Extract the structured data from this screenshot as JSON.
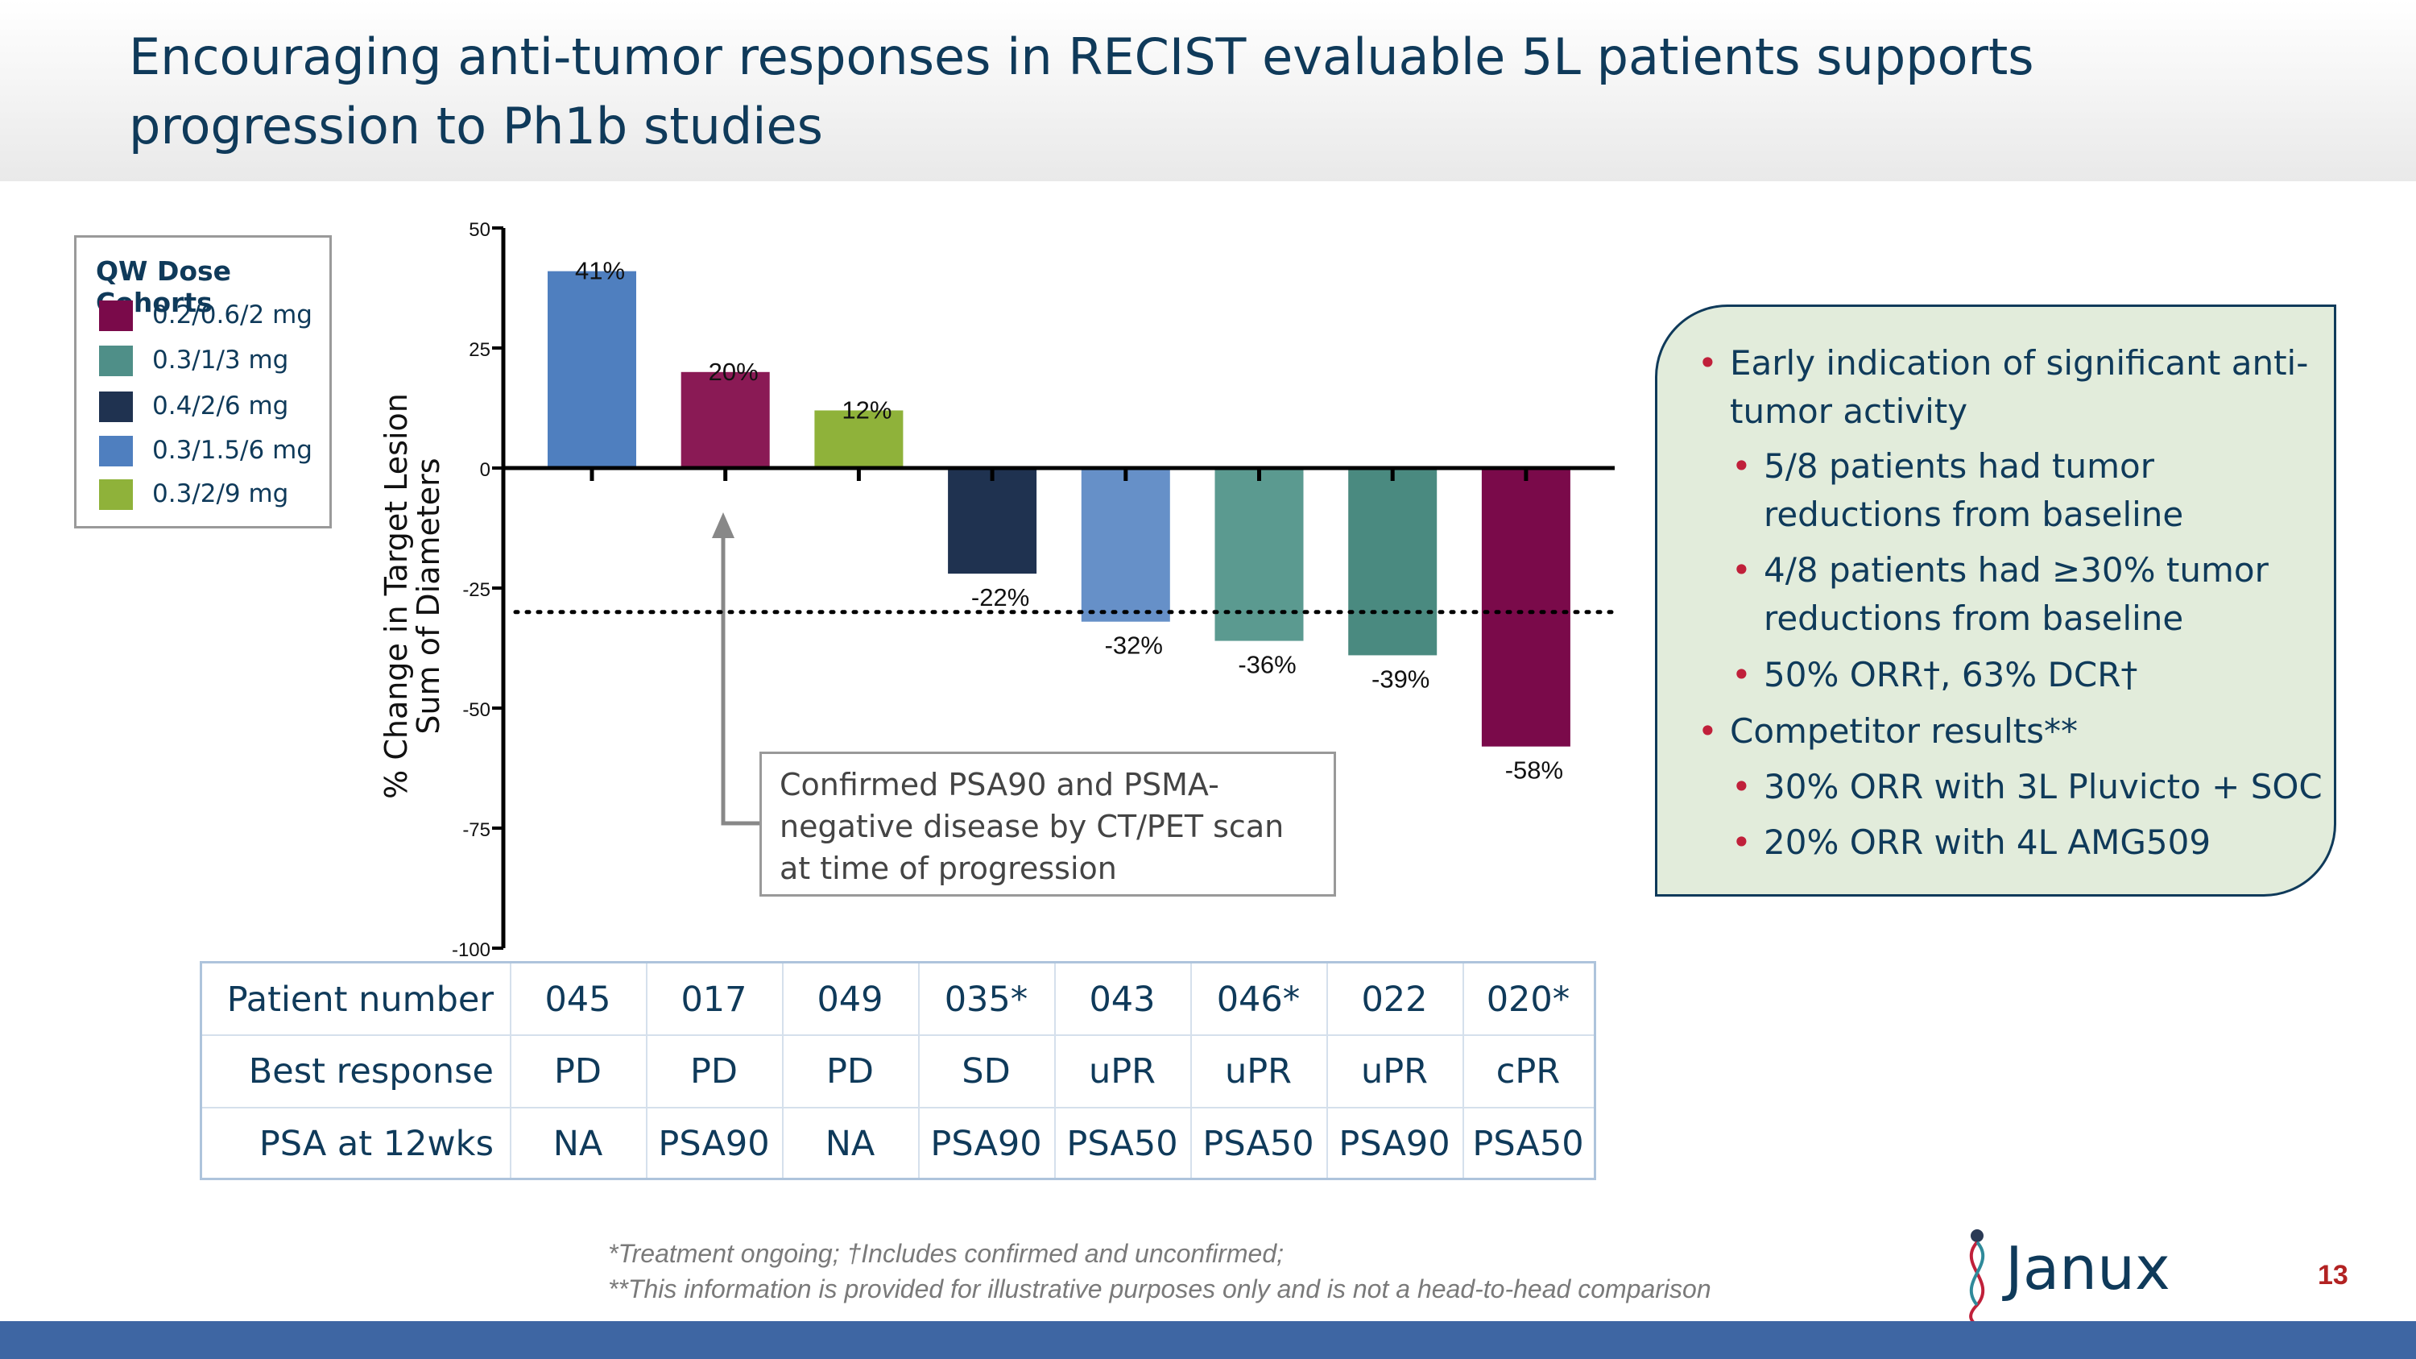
{
  "slide": {
    "title": "Encouraging anti-tumor responses in RECIST evaluable 5L patients supports progression to Ph1b studies",
    "page_number": "13",
    "logo_text": "Janux"
  },
  "legend": {
    "title": "QW Dose Cohorts",
    "items": [
      {
        "label": "0.2/0.6/2 mg",
        "color": "#7a0a4a"
      },
      {
        "label": "0.3/1/3 mg",
        "color": "#4f8f88"
      },
      {
        "label": "0.4/2/6 mg",
        "color": "#1f3250"
      },
      {
        "label": "0.3/1.5/6 mg",
        "color": "#4f7fbf"
      },
      {
        "label": "0.3/2/9 mg",
        "color": "#8fb23a"
      }
    ]
  },
  "chart_data": {
    "type": "bar",
    "title": "",
    "ylabel": "% Change in Target Lesion Sum of Diameters",
    "ylabel_lines": [
      "% Change in Target Lesion",
      "Sum of  Diameters"
    ],
    "xlabel": "",
    "ylim": [
      -100,
      50
    ],
    "yticks": [
      50,
      25,
      0,
      -25,
      -50,
      -75,
      -100
    ],
    "threshold_line": -30,
    "categories": [
      "045",
      "017",
      "049",
      "035*",
      "043",
      "046*",
      "022",
      "020*"
    ],
    "values": [
      41,
      20,
      12,
      -22,
      -32,
      -36,
      -39,
      -58
    ],
    "value_labels": [
      "41%",
      "20%",
      "12%",
      "-22%",
      "-32%",
      "-36%",
      "-39%",
      "-58%"
    ],
    "colors": [
      "#4f7fbf",
      "#8a1a55",
      "#8fb23a",
      "#1f3250",
      "#6690c8",
      "#5b9a90",
      "#4a8a80",
      "#7a0a4a"
    ]
  },
  "callout": {
    "text": "Confirmed PSA90 and PSMA-negative disease by CT/PET scan at time of progression"
  },
  "summary": {
    "bullets": [
      {
        "text": "Early indication of significant anti-tumor activity",
        "level": 0
      },
      {
        "text": "5/8 patients had tumor reductions from baseline",
        "level": 1
      },
      {
        "text": "4/8 patients had ≥30% tumor reductions from baseline",
        "level": 1
      },
      {
        "text": "50% ORR†, 63% DCR†",
        "level": 1
      },
      {
        "text": "Competitor results**",
        "level": 0
      },
      {
        "text": "30% ORR with 3L Pluvicto + SOC",
        "level": 1
      },
      {
        "text": "20% ORR with 4L AMG509",
        "level": 1
      }
    ]
  },
  "table": {
    "rows": [
      {
        "label": "Patient number",
        "cells": [
          "045",
          "017",
          "049",
          "035*",
          "043",
          "046*",
          "022",
          "020*"
        ]
      },
      {
        "label": "Best response",
        "cells": [
          "PD",
          "PD",
          "PD",
          "SD",
          "uPR",
          "uPR",
          "uPR",
          "cPR"
        ]
      },
      {
        "label": "PSA at 12wks",
        "cells": [
          "NA",
          "PSA90",
          "NA",
          "PSA90",
          "PSA50",
          "PSA50",
          "PSA90",
          "PSA50"
        ]
      }
    ]
  },
  "footnotes": {
    "line1": "*Treatment ongoing; †Includes confirmed and unconfirmed;",
    "line2": "**This information is provided for illustrative purposes only and is not a head-to-head comparison"
  }
}
